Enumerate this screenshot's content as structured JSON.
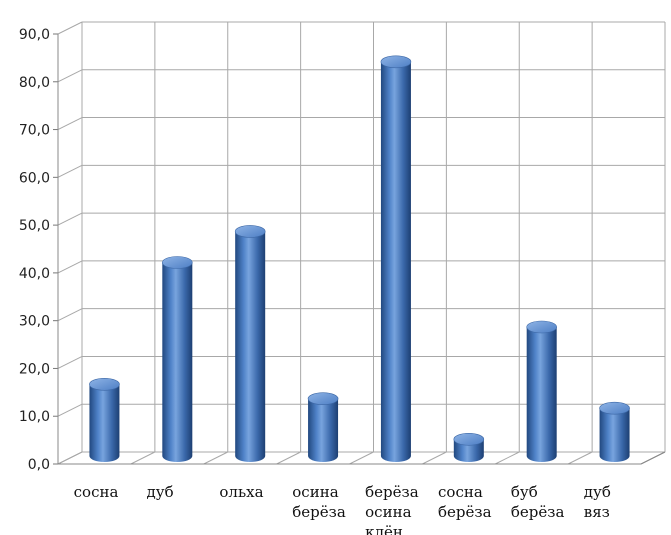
{
  "chart_data": {
    "type": "bar",
    "style": "3d-cylinder",
    "title": "",
    "xlabel": "",
    "ylabel": "",
    "ylim": [
      0,
      90
    ],
    "ytick_step": 10,
    "ytick_labels": [
      "0,0",
      "10,0",
      "20,0",
      "30,0",
      "40,0",
      "50,0",
      "60,0",
      "70,0",
      "80,0",
      "90,0"
    ],
    "grid": true,
    "legend": "none",
    "bar_color": "#4a7ac0",
    "categories": [
      [
        "сосна"
      ],
      [
        "дуб"
      ],
      [
        "ольха"
      ],
      [
        "осина",
        "берёза"
      ],
      [
        "берёза",
        "осина",
        "клён"
      ],
      [
        "сосна",
        "берёза"
      ],
      [
        "буб",
        "берёза"
      ],
      [
        "дуб",
        "вяз"
      ]
    ],
    "values": [
      15.0,
      40.5,
      47.0,
      12.0,
      82.5,
      3.5,
      27.0,
      10.0
    ]
  }
}
